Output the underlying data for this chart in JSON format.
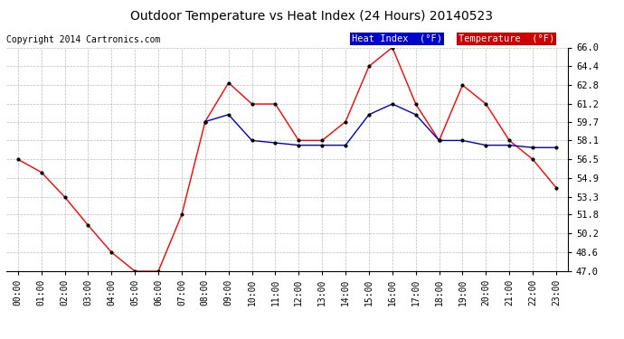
{
  "title": "Outdoor Temperature vs Heat Index (24 Hours) 20140523",
  "copyright": "Copyright 2014 Cartronics.com",
  "background_color": "#ffffff",
  "grid_color": "#aaaaaa",
  "ylim": [
    47.0,
    66.0
  ],
  "yticks": [
    47.0,
    48.6,
    50.2,
    51.8,
    53.3,
    54.9,
    56.5,
    58.1,
    59.7,
    61.2,
    62.8,
    64.4,
    66.0
  ],
  "hours": [
    0,
    1,
    2,
    3,
    4,
    5,
    6,
    7,
    8,
    9,
    10,
    11,
    12,
    13,
    14,
    15,
    16,
    17,
    18,
    19,
    20,
    21,
    22,
    23
  ],
  "temperature": [
    56.5,
    55.4,
    53.3,
    50.9,
    48.6,
    47.0,
    47.0,
    51.8,
    59.7,
    63.0,
    61.2,
    61.2,
    58.1,
    58.1,
    59.7,
    64.4,
    66.0,
    61.2,
    58.1,
    62.8,
    61.2,
    58.1,
    56.5,
    54.1
  ],
  "heat_index": [
    null,
    null,
    null,
    null,
    null,
    null,
    null,
    null,
    59.7,
    60.3,
    58.1,
    57.9,
    57.7,
    57.7,
    57.7,
    60.3,
    61.2,
    60.3,
    58.1,
    58.1,
    57.7,
    57.7,
    57.5,
    57.5
  ],
  "temp_color": "#ff0000",
  "heat_color": "#0000cc",
  "marker_color": "#000000",
  "legend_heat_bg": "#0000cc",
  "legend_temp_bg": "#cc0000",
  "legend_text_color": "#ffffff",
  "legend_heat_label": "Heat Index  (°F)",
  "legend_temp_label": "Temperature  (°F)"
}
